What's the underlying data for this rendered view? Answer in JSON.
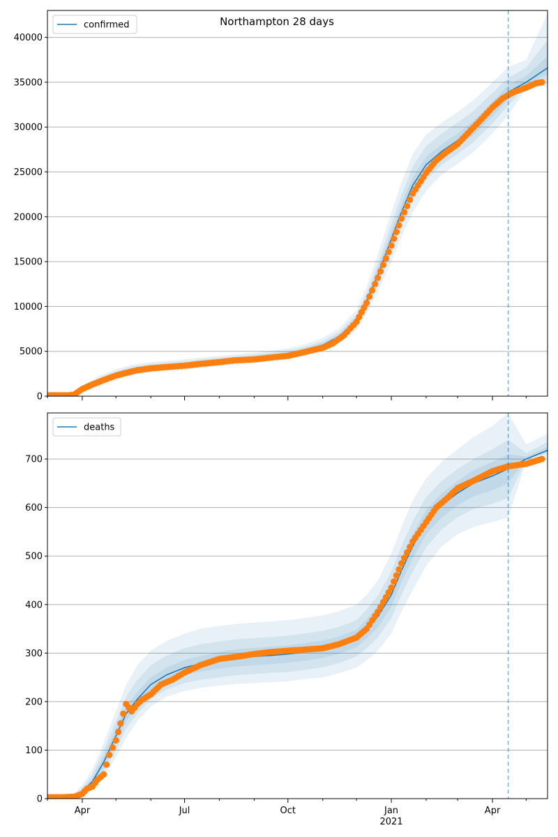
{
  "colors": {
    "model": "#1f77b4",
    "observed": "#ff7f0e",
    "grid": "#b0b0b0",
    "axis": "#000000",
    "band": "#1f77b4"
  },
  "figure": {
    "title": "Northampton 28 days"
  },
  "chart_data": [
    {
      "type": "line",
      "name": "confirmed",
      "legend": "confirmed",
      "legend_position": "top-left",
      "title": "Northampton 28 days",
      "xlim": [
        "2020-03-01",
        "2021-05-20"
      ],
      "ylim": [
        0,
        43000
      ],
      "x_tick_dates": [
        "2020-04-01",
        "2020-07-01",
        "2020-10-01",
        "2021-01-01",
        "2021-04-01"
      ],
      "x_tick_labels": [
        "Apr",
        "Jul",
        "Oct",
        "Jan",
        "Apr"
      ],
      "x_tick_year_label": "2021",
      "x_minor_tick_dates": [
        "2020-03-01",
        "2020-05-01",
        "2020-06-01",
        "2020-08-01",
        "2020-09-01",
        "2020-11-01",
        "2020-12-01",
        "2021-02-01",
        "2021-03-01",
        "2021-05-01"
      ],
      "yticks": [
        0,
        5000,
        10000,
        15000,
        20000,
        25000,
        30000,
        35000,
        40000
      ],
      "ytick_labels": [
        "0",
        "5000",
        "10000",
        "15000",
        "20000",
        "25000",
        "30000",
        "35000",
        "40000"
      ],
      "grid": "horizontal",
      "forecast_start": "2021-04-15",
      "model": {
        "dates": [
          "2020-03-01",
          "2020-03-15",
          "2020-03-25",
          "2020-04-01",
          "2020-04-15",
          "2020-05-01",
          "2020-05-15",
          "2020-06-01",
          "2020-06-15",
          "2020-07-01",
          "2020-07-15",
          "2020-08-01",
          "2020-08-15",
          "2020-09-01",
          "2020-09-15",
          "2020-10-01",
          "2020-10-15",
          "2020-11-01",
          "2020-11-15",
          "2020-12-01",
          "2020-12-10",
          "2020-12-20",
          "2021-01-01",
          "2021-01-10",
          "2021-01-20",
          "2021-02-01",
          "2021-02-15",
          "2021-03-01",
          "2021-03-15",
          "2021-04-01",
          "2021-04-15",
          "2021-05-01",
          "2021-05-20"
        ],
        "values": [
          50,
          80,
          200,
          800,
          1600,
          2400,
          2900,
          3200,
          3350,
          3500,
          3700,
          3900,
          4050,
          4250,
          4450,
          4700,
          5050,
          5700,
          6600,
          8400,
          10600,
          13500,
          17500,
          20500,
          23500,
          25800,
          27300,
          28500,
          29900,
          32000,
          33900,
          35000,
          36600
        ],
        "bands": [
          {
            "lower": [
              20,
              40,
              80,
              500,
              1100,
              1800,
              2300,
              2650,
              2800,
              2950,
              3150,
              3350,
              3500,
              3700,
              3900,
              4100,
              4400,
              5000,
              5850,
              7400,
              9300,
              11600,
              15000,
              17800,
              20500,
              22900,
              24700,
              25900,
              27200,
              29300,
              31300,
              34300,
              34600
            ],
            "upper": [
              100,
              150,
              350,
              1200,
              2200,
              3000,
              3500,
              3800,
              3950,
              4100,
              4300,
              4500,
              4650,
              4850,
              5050,
              5350,
              5750,
              6500,
              7500,
              9600,
              12200,
              15800,
              20500,
              23800,
              27000,
              29200,
              30500,
              31700,
              33000,
              35000,
              36700,
              37500,
              42700
            ]
          },
          {
            "lower": [
              30,
              55,
              120,
              600,
              1300,
              2000,
              2550,
              2850,
              3000,
              3150,
              3350,
              3550,
              3700,
              3900,
              4100,
              4350,
              4700,
              5300,
              6150,
              7800,
              9800,
              12300,
              15900,
              18900,
              21800,
              24100,
              25800,
              27000,
              28300,
              30400,
              32400,
              34600,
              35300
            ],
            "upper": [
              80,
              120,
              290,
              1050,
              2000,
              2800,
              3300,
              3600,
              3750,
              3900,
              4100,
              4300,
              4450,
              4650,
              4850,
              5100,
              5450,
              6150,
              7100,
              9100,
              11500,
              14800,
              19200,
              22400,
              25600,
              27900,
              29300,
              30500,
              31800,
              33800,
              35500,
              36600,
              39700
            ]
          },
          {
            "lower": [
              40,
              65,
              160,
              700,
              1450,
              2200,
              2700,
              3050,
              3200,
              3350,
              3550,
              3750,
              3900,
              4100,
              4300,
              4550,
              4900,
              5500,
              6400,
              8100,
              10200,
              12900,
              16700,
              19700,
              22700,
              25000,
              26600,
              27800,
              29100,
              31200,
              33100,
              34800,
              35900
            ],
            "upper": [
              65,
              100,
              250,
              920,
              1800,
              2600,
              3100,
              3400,
              3550,
              3700,
              3900,
              4100,
              4250,
              4450,
              4650,
              4900,
              5250,
              5950,
              6850,
              8750,
              11000,
              14200,
              18300,
              21400,
              24400,
              26700,
              28100,
              29300,
              30700,
              32800,
              34700,
              35700,
              37900
            ]
          }
        ]
      },
      "observed": {
        "dates": [
          "2020-03-01",
          "2020-03-10",
          "2020-03-20",
          "2020-03-25",
          "2020-04-01",
          "2020-04-10",
          "2020-04-20",
          "2020-05-01",
          "2020-05-10",
          "2020-05-20",
          "2020-06-01",
          "2020-06-15",
          "2020-07-01",
          "2020-07-15",
          "2020-08-01",
          "2020-08-15",
          "2020-09-01",
          "2020-09-15",
          "2020-10-01",
          "2020-10-15",
          "2020-11-01",
          "2020-11-10",
          "2020-11-20",
          "2020-12-01",
          "2020-12-10",
          "2020-12-20",
          "2021-01-01",
          "2021-01-10",
          "2021-01-20",
          "2021-02-01",
          "2021-02-10",
          "2021-02-20",
          "2021-03-01",
          "2021-03-10",
          "2021-03-20",
          "2021-04-01",
          "2021-04-10",
          "2021-04-20",
          "2021-05-01",
          "2021-05-10",
          "2021-05-15"
        ],
        "values": [
          100,
          100,
          100,
          200,
          800,
          1300,
          1800,
          2300,
          2600,
          2900,
          3100,
          3250,
          3400,
          3600,
          3800,
          4000,
          4100,
          4300,
          4500,
          4900,
          5400,
          5900,
          6800,
          8300,
          10400,
          13200,
          16800,
          19800,
          22600,
          24900,
          26300,
          27300,
          28100,
          29300,
          30600,
          32200,
          33200,
          33900,
          34400,
          34900,
          35000
        ]
      }
    },
    {
      "type": "line",
      "name": "deaths",
      "legend": "deaths",
      "legend_position": "top-left",
      "xlim": [
        "2020-03-01",
        "2021-05-20"
      ],
      "ylim": [
        0,
        795
      ],
      "x_tick_dates": [
        "2020-04-01",
        "2020-07-01",
        "2020-10-01",
        "2021-01-01",
        "2021-04-01"
      ],
      "x_tick_labels": [
        "Apr",
        "Jul",
        "Oct",
        "Jan",
        "Apr"
      ],
      "x_tick_year_label": "2021",
      "x_minor_tick_dates": [
        "2020-03-01",
        "2020-05-01",
        "2020-06-01",
        "2020-08-01",
        "2020-09-01",
        "2020-11-01",
        "2020-12-01",
        "2021-02-01",
        "2021-03-01",
        "2021-05-01"
      ],
      "yticks": [
        0,
        100,
        200,
        300,
        400,
        500,
        600,
        700
      ],
      "ytick_labels": [
        "0",
        "100",
        "200",
        "300",
        "400",
        "500",
        "600",
        "700"
      ],
      "grid": "horizontal",
      "forecast_start": "2021-04-15",
      "model": {
        "dates": [
          "2020-03-01",
          "2020-03-15",
          "2020-03-25",
          "2020-04-01",
          "2020-04-10",
          "2020-04-20",
          "2020-05-01",
          "2020-05-10",
          "2020-05-20",
          "2020-06-01",
          "2020-06-15",
          "2020-07-01",
          "2020-07-15",
          "2020-08-01",
          "2020-08-15",
          "2020-09-01",
          "2020-09-15",
          "2020-10-01",
          "2020-10-15",
          "2020-11-01",
          "2020-11-15",
          "2020-12-01",
          "2020-12-10",
          "2020-12-20",
          "2021-01-01",
          "2021-01-10",
          "2021-01-20",
          "2021-02-01",
          "2021-02-15",
          "2021-03-01",
          "2021-03-15",
          "2021-04-01",
          "2021-04-15",
          "2021-05-01",
          "2021-05-20"
        ],
        "values": [
          0,
          2,
          6,
          15,
          35,
          75,
          130,
          175,
          205,
          235,
          255,
          270,
          278,
          285,
          290,
          293,
          295,
          298,
          302,
          308,
          316,
          330,
          350,
          375,
          420,
          470,
          520,
          570,
          605,
          630,
          650,
          665,
          680,
          700,
          718
        ],
        "bands": [
          {
            "lower": [
              0,
              1,
              3,
              8,
              20,
              45,
              85,
              125,
              160,
              190,
              210,
              222,
              228,
              233,
              236,
              238,
              240,
              242,
              246,
              250,
              258,
              270,
              285,
              305,
              340,
              385,
              430,
              480,
              520,
              545,
              560,
              570,
              580,
              695,
              705
            ],
            "upper": [
              2,
              4,
              12,
              28,
              60,
              115,
              180,
              235,
              275,
              305,
              325,
              340,
              350,
              356,
              360,
              363,
              365,
              368,
              372,
              378,
              386,
              400,
              420,
              450,
              505,
              560,
              615,
              660,
              695,
              720,
              745,
              768,
              795,
              730,
              752
            ]
          },
          {
            "lower": [
              0,
              1,
              4,
              10,
              25,
              55,
              100,
              145,
              175,
              205,
              225,
              238,
              245,
              250,
              254,
              257,
              259,
              261,
              265,
              271,
              279,
              293,
              310,
              332,
              372,
              420,
              468,
              518,
              555,
              580,
              597,
              608,
              620,
              698,
              712
            ],
            "upper": [
              1,
              3,
              9,
              22,
              50,
              100,
              160,
              210,
              245,
              275,
              295,
              310,
              318,
              324,
              328,
              331,
              333,
              336,
              340,
              346,
              354,
              368,
              390,
              418,
              468,
              520,
              572,
              622,
              655,
              680,
              700,
              720,
              740,
              712,
              735
            ]
          },
          {
            "lower": [
              0,
              1,
              5,
              12,
              30,
              65,
              115,
              160,
              190,
              220,
              240,
              254,
              262,
              268,
              272,
              275,
              277,
              280,
              284,
              290,
              298,
              312,
              330,
              353,
              396,
              445,
              495,
              545,
              580,
              605,
              623,
              636,
              650,
              700,
              715
            ],
            "upper": [
              1,
              3,
              7,
              18,
              42,
              87,
              145,
              190,
              220,
              250,
              270,
              286,
              294,
              302,
              308,
              311,
              313,
              316,
              320,
              326,
              334,
              348,
              370,
              397,
              444,
              495,
              545,
              595,
              630,
              655,
              677,
              694,
              710,
              705,
              725
            ]
          }
        ]
      },
      "observed": {
        "dates": [
          "2020-03-01",
          "2020-03-15",
          "2020-03-25",
          "2020-04-01",
          "2020-04-05",
          "2020-04-10",
          "2020-04-15",
          "2020-04-20",
          "2020-04-25",
          "2020-05-01",
          "2020-05-05",
          "2020-05-10",
          "2020-05-15",
          "2020-05-20",
          "2020-05-25",
          "2020-06-01",
          "2020-06-10",
          "2020-06-20",
          "2020-07-01",
          "2020-07-15",
          "2020-08-01",
          "2020-08-15",
          "2020-09-01",
          "2020-09-15",
          "2020-10-01",
          "2020-10-15",
          "2020-11-01",
          "2020-11-15",
          "2020-12-01",
          "2020-12-10",
          "2020-12-20",
          "2021-01-01",
          "2021-01-10",
          "2021-01-20",
          "2021-02-01",
          "2021-02-10",
          "2021-02-20",
          "2021-03-01",
          "2021-03-15",
          "2021-04-01",
          "2021-04-15",
          "2021-05-01",
          "2021-05-15"
        ],
        "values": [
          3,
          3,
          4,
          10,
          20,
          25,
          40,
          50,
          90,
          120,
          155,
          195,
          180,
          195,
          205,
          215,
          235,
          245,
          260,
          275,
          288,
          292,
          298,
          302,
          305,
          307,
          310,
          318,
          332,
          350,
          385,
          435,
          485,
          530,
          570,
          600,
          620,
          640,
          655,
          675,
          685,
          690,
          700
        ]
      }
    }
  ]
}
